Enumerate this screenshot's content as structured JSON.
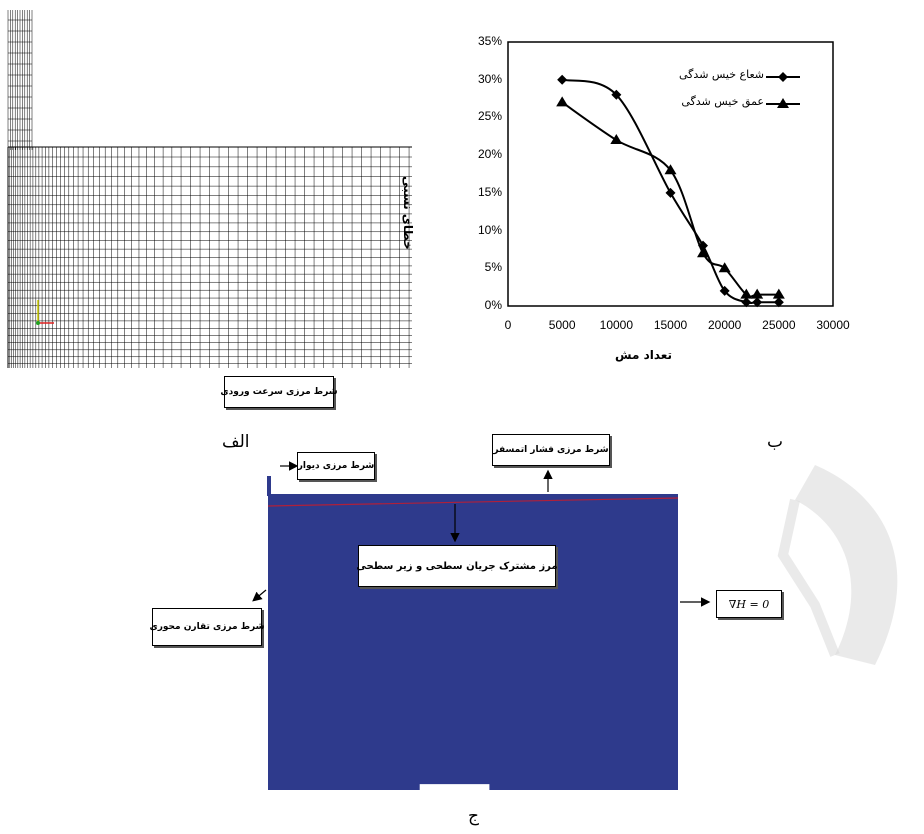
{
  "panel_a": {
    "caption": "الف",
    "inlet_label": "شرط مرزی سرعت ورودی"
  },
  "panel_b": {
    "caption": "ب"
  },
  "panel_c": {
    "caption": "ج",
    "wall_label": "شرط مرزی دیوار",
    "pressure_label": "شرط مرزی فشار اتمسفر",
    "interface_label": "مرز مشترک جریان سطحی و زیر سطحی",
    "axis_label": "شرط مرزی تقارن محوری",
    "gradient_label": "∇H = 0",
    "domain_color": "#2e3a8c",
    "interface_color": "#b0203a"
  },
  "chart_data": {
    "type": "line",
    "title": "",
    "xlabel": "تعداد مش",
    "ylabel": "خطای نسبی",
    "xlim": [
      0,
      30000
    ],
    "ylim": [
      0,
      35
    ],
    "x_ticks": [
      "0",
      "5000",
      "10000",
      "15000",
      "20000",
      "25000",
      "30000"
    ],
    "y_ticks": [
      "0%",
      "5%",
      "10%",
      "15%",
      "20%",
      "25%",
      "30%",
      "35%"
    ],
    "grid": false,
    "legend_position": "top-right",
    "series": [
      {
        "name": "شعاع خیس شدگی",
        "marker": "diamond",
        "x": [
          5000,
          10000,
          15000,
          18000,
          20000,
          22000,
          23000,
          25000
        ],
        "y": [
          30,
          28,
          15,
          8,
          2,
          0.5,
          0.5,
          0.5
        ]
      },
      {
        "name": "عمق خیس شدگی",
        "marker": "triangle",
        "x": [
          5000,
          10000,
          15000,
          18000,
          20000,
          22000,
          23000,
          25000
        ],
        "y": [
          27,
          22,
          18,
          7,
          5,
          1.5,
          1.5,
          1.5
        ]
      }
    ]
  }
}
